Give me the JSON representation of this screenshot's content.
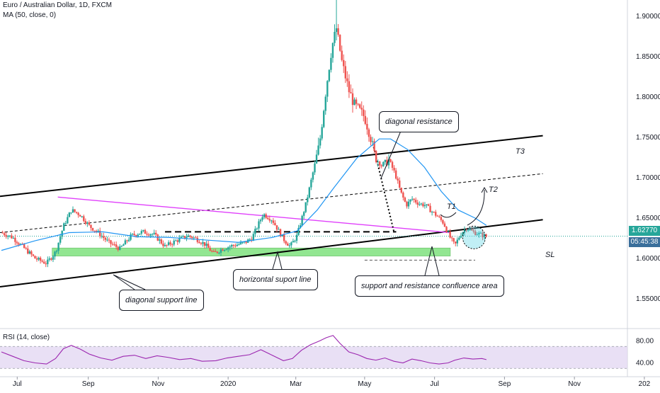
{
  "header": {
    "symbol_line": "Euro / Australian Dollar, 1D, FXCM",
    "ma_line": "MA (50, close, 0)",
    "rsi_line": "RSI (14, close)"
  },
  "price_tag": {
    "value": "1.62770",
    "countdown": "05:45:38"
  },
  "annotations": {
    "diagonal_resistance": "diagonal resistance",
    "horizontal_support": "horizontal suport line",
    "diagonal_support": "diagonal support line",
    "confluence": "support and resistance confluence  area",
    "t1": "T1",
    "t2": "T2",
    "t3": "T3",
    "sl": "SL"
  },
  "colors": {
    "up": "#26a69a",
    "down": "#ef5350",
    "ma": "#2196f3",
    "rsi": "#9c27b0",
    "rsi_band": "#e1d5f1",
    "green_zone": "#80e27e",
    "magenta_line": "#e040fb",
    "price_tag": "#26a69a",
    "circle": "#4dd0e1"
  },
  "chart_data": [
    {
      "type": "candlestick",
      "title": "Euro / Australian Dollar, 1D, FXCM",
      "x_ticks": [
        "Jul",
        "Sep",
        "Nov",
        "2020",
        "Mar",
        "May",
        "Jul",
        "Sep",
        "Nov",
        "202"
      ],
      "y_ticks": [
        "1.90000",
        "1.85000",
        "1.80000",
        "1.75000",
        "1.70000",
        "1.65000",
        "1.60000",
        "1.55000"
      ],
      "ylim": [
        1.515,
        1.92
      ],
      "x_range_days": 555,
      "series_description": "EURAUD daily candles mid-2019 to mid-2020 with MA(50)",
      "close_path": [
        [
          0,
          1.632
        ],
        [
          10,
          1.626
        ],
        [
          20,
          1.613
        ],
        [
          30,
          1.6
        ],
        [
          40,
          1.594
        ],
        [
          48,
          1.608
        ],
        [
          55,
          1.64
        ],
        [
          62,
          1.66
        ],
        [
          70,
          1.654
        ],
        [
          78,
          1.64
        ],
        [
          85,
          1.633
        ],
        [
          95,
          1.62
        ],
        [
          105,
          1.612
        ],
        [
          115,
          1.628
        ],
        [
          125,
          1.633
        ],
        [
          135,
          1.63
        ],
        [
          145,
          1.615
        ],
        [
          155,
          1.622
        ],
        [
          165,
          1.628
        ],
        [
          172,
          1.625
        ],
        [
          180,
          1.618
        ],
        [
          188,
          1.606
        ],
        [
          196,
          1.612
        ],
        [
          205,
          1.616
        ],
        [
          215,
          1.619
        ],
        [
          222,
          1.625
        ],
        [
          232,
          1.655
        ],
        [
          240,
          1.648
        ],
        [
          250,
          1.624
        ],
        [
          256,
          1.615
        ],
        [
          262,
          1.628
        ],
        [
          270,
          1.668
        ],
        [
          276,
          1.705
        ],
        [
          282,
          1.742
        ],
        [
          288,
          1.812
        ],
        [
          293,
          1.862
        ],
        [
          297,
          1.885
        ],
        [
          302,
          1.842
        ],
        [
          308,
          1.808
        ],
        [
          313,
          1.79
        ],
        [
          318,
          1.782
        ],
        [
          322,
          1.775
        ],
        [
          327,
          1.752
        ],
        [
          331,
          1.727
        ],
        [
          337,
          1.715
        ],
        [
          343,
          1.723
        ],
        [
          349,
          1.705
        ],
        [
          354,
          1.682
        ],
        [
          359,
          1.666
        ],
        [
          364,
          1.674
        ],
        [
          370,
          1.668
        ],
        [
          376,
          1.666
        ],
        [
          381,
          1.659
        ],
        [
          386,
          1.653
        ],
        [
          392,
          1.644
        ],
        [
          397,
          1.628
        ],
        [
          402,
          1.616
        ],
        [
          407,
          1.63
        ],
        [
          412,
          1.638
        ],
        [
          418,
          1.633
        ],
        [
          424,
          1.63
        ],
        [
          430,
          1.627
        ]
      ],
      "ma_path": [
        [
          0,
          1.61
        ],
        [
          30,
          1.622
        ],
        [
          60,
          1.632
        ],
        [
          90,
          1.633
        ],
        [
          120,
          1.627
        ],
        [
          150,
          1.626
        ],
        [
          180,
          1.623
        ],
        [
          210,
          1.62
        ],
        [
          240,
          1.626
        ],
        [
          262,
          1.634
        ],
        [
          280,
          1.66
        ],
        [
          295,
          1.688
        ],
        [
          315,
          1.724
        ],
        [
          335,
          1.748
        ],
        [
          345,
          1.748
        ],
        [
          360,
          1.735
        ],
        [
          375,
          1.713
        ],
        [
          390,
          1.683
        ],
        [
          405,
          1.66
        ],
        [
          420,
          1.65
        ],
        [
          430,
          1.641
        ]
      ]
    },
    {
      "type": "line",
      "title": "RSI (14, close)",
      "y_ticks": [
        "80.00",
        "40.00"
      ],
      "ylim": [
        20,
        100
      ],
      "band": [
        30,
        70
      ],
      "values_path": [
        [
          0,
          60
        ],
        [
          10,
          52
        ],
        [
          20,
          44
        ],
        [
          30,
          40
        ],
        [
          40,
          38
        ],
        [
          48,
          48
        ],
        [
          55,
          66
        ],
        [
          62,
          72
        ],
        [
          70,
          65
        ],
        [
          78,
          56
        ],
        [
          88,
          49
        ],
        [
          98,
          45
        ],
        [
          108,
          52
        ],
        [
          118,
          54
        ],
        [
          128,
          48
        ],
        [
          138,
          53
        ],
        [
          148,
          50
        ],
        [
          158,
          46
        ],
        [
          168,
          48
        ],
        [
          178,
          43
        ],
        [
          190,
          44
        ],
        [
          200,
          49
        ],
        [
          210,
          52
        ],
        [
          220,
          55
        ],
        [
          230,
          64
        ],
        [
          240,
          54
        ],
        [
          250,
          44
        ],
        [
          258,
          48
        ],
        [
          266,
          63
        ],
        [
          274,
          73
        ],
        [
          282,
          80
        ],
        [
          288,
          86
        ],
        [
          294,
          90
        ],
        [
          300,
          76
        ],
        [
          308,
          60
        ],
        [
          316,
          55
        ],
        [
          324,
          48
        ],
        [
          332,
          45
        ],
        [
          340,
          49
        ],
        [
          348,
          43
        ],
        [
          356,
          40
        ],
        [
          364,
          47
        ],
        [
          372,
          44
        ],
        [
          380,
          40
        ],
        [
          388,
          38
        ],
        [
          396,
          40
        ],
        [
          402,
          45
        ],
        [
          410,
          49
        ],
        [
          418,
          47
        ],
        [
          426,
          48
        ],
        [
          430,
          46
        ]
      ]
    }
  ]
}
